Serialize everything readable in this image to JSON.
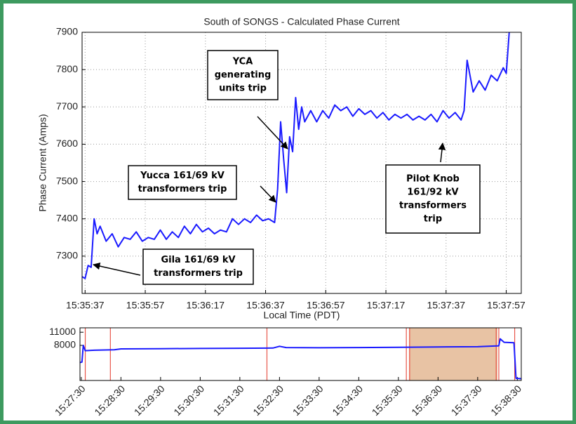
{
  "chart_data": [
    {
      "type": "line",
      "title": "South of SONGS - Calculated Phase Current",
      "xlabel": "Local Time (PDT)",
      "ylabel": "Phase Current (Amps)",
      "color": "#1a1aff",
      "grid": true,
      "xlim": [
        "15:35:36",
        "15:38:02"
      ],
      "xticks": [
        "15:35:37",
        "15:35:57",
        "15:36:17",
        "15:36:37",
        "15:36:57",
        "15:37:17",
        "15:37:37",
        "15:37:57"
      ],
      "ylim": [
        7200,
        7900
      ],
      "yticks": [
        7300,
        7400,
        7500,
        7600,
        7700,
        7800,
        7900
      ],
      "x": [
        "15:35:36",
        "15:35:37",
        "15:35:38",
        "15:35:39",
        "15:35:40",
        "15:35:41",
        "15:35:42",
        "15:35:44",
        "15:35:46",
        "15:35:48",
        "15:35:50",
        "15:35:52",
        "15:35:54",
        "15:35:56",
        "15:35:58",
        "15:36:00",
        "15:36:02",
        "15:36:04",
        "15:36:06",
        "15:36:08",
        "15:36:10",
        "15:36:12",
        "15:36:14",
        "15:36:16",
        "15:36:18",
        "15:36:20",
        "15:36:22",
        "15:36:24",
        "15:36:26",
        "15:36:28",
        "15:36:30",
        "15:36:32",
        "15:36:34",
        "15:36:36",
        "15:36:38",
        "15:36:40",
        "15:36:41",
        "15:36:42",
        "15:36:43",
        "15:36:44",
        "15:36:45",
        "15:36:46",
        "15:36:47",
        "15:36:48",
        "15:36:49",
        "15:36:50",
        "15:36:52",
        "15:36:54",
        "15:36:56",
        "15:36:58",
        "15:37:00",
        "15:37:02",
        "15:37:04",
        "15:37:06",
        "15:37:08",
        "15:37:10",
        "15:37:12",
        "15:37:14",
        "15:37:16",
        "15:37:18",
        "15:37:20",
        "15:37:22",
        "15:37:24",
        "15:37:26",
        "15:37:28",
        "15:37:30",
        "15:37:32",
        "15:37:34",
        "15:37:36",
        "15:37:38",
        "15:37:40",
        "15:37:42",
        "15:37:43",
        "15:37:44",
        "15:37:46",
        "15:37:48",
        "15:37:50",
        "15:37:52",
        "15:37:54",
        "15:37:56",
        "15:37:57",
        "15:37:58"
      ],
      "values": [
        7245,
        7240,
        7275,
        7270,
        7400,
        7360,
        7380,
        7340,
        7360,
        7325,
        7350,
        7345,
        7365,
        7340,
        7350,
        7345,
        7370,
        7345,
        7365,
        7350,
        7380,
        7360,
        7385,
        7365,
        7375,
        7360,
        7370,
        7365,
        7400,
        7385,
        7400,
        7390,
        7410,
        7395,
        7400,
        7390,
        7480,
        7660,
        7560,
        7470,
        7620,
        7580,
        7725,
        7640,
        7700,
        7660,
        7690,
        7660,
        7690,
        7670,
        7705,
        7690,
        7700,
        7675,
        7695,
        7680,
        7690,
        7670,
        7685,
        7665,
        7680,
        7670,
        7680,
        7665,
        7675,
        7665,
        7680,
        7660,
        7690,
        7670,
        7685,
        7665,
        7690,
        7825,
        7740,
        7770,
        7745,
        7785,
        7770,
        7805,
        7790,
        7900
      ],
      "annotations": [
        {
          "lines": [
            "YCA",
            "generating",
            "units trip"
          ]
        },
        {
          "lines": [
            "Yucca 161/69 kV",
            "transformers trip"
          ]
        },
        {
          "lines": [
            "Gila 161/69 kV",
            "transformers trip"
          ]
        },
        {
          "lines": [
            "Pilot Knob",
            "161/92 kV",
            "transformers",
            "trip"
          ]
        }
      ]
    },
    {
      "type": "line",
      "color": "#1a1aff",
      "marker_color": "#e8564a",
      "highlight_color": "#e8c3a4",
      "xlim": [
        "15:27:28",
        "15:38:36"
      ],
      "xticks": [
        "15:27:30",
        "15:28:30",
        "15:29:30",
        "15:30:30",
        "15:31:30",
        "15:32:30",
        "15:33:30",
        "15:34:30",
        "15:35:30",
        "15:36:30",
        "15:37:30",
        "15:38:30"
      ],
      "ylim": [
        0,
        12000
      ],
      "yticks": [
        8000,
        11000
      ],
      "x": [
        "15:27:28",
        "15:27:31",
        "15:27:33",
        "15:27:36",
        "15:27:50",
        "15:28:20",
        "15:28:30",
        "15:29:30",
        "15:30:30",
        "15:31:30",
        "15:32:20",
        "15:32:30",
        "15:32:40",
        "15:33:30",
        "15:34:30",
        "15:35:30",
        "15:36:30",
        "15:37:30",
        "15:38:02",
        "15:38:04",
        "15:38:10",
        "15:38:25",
        "15:38:28",
        "15:38:36"
      ],
      "values": [
        4100,
        4200,
        8000,
        6800,
        6900,
        7000,
        7200,
        7250,
        7300,
        7350,
        7400,
        7800,
        7500,
        7450,
        7500,
        7550,
        7650,
        7700,
        7900,
        9500,
        8700,
        8600,
        500,
        400
      ],
      "markers": [
        "15:27:36",
        "15:28:14",
        "15:32:11",
        "15:35:42",
        "15:35:47",
        "15:37:58",
        "15:38:02",
        "15:38:26"
      ],
      "highlight": [
        "15:35:46",
        "15:38:00"
      ]
    }
  ]
}
